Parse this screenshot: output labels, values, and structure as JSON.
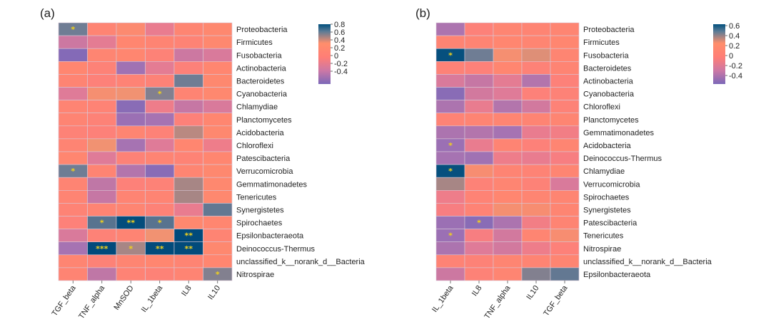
{
  "chart_data": [
    {
      "type": "heatmap",
      "panel_label": "(a)",
      "columns": [
        "TGF_beta",
        "TNF_alpha",
        "MnSOD",
        "IL_1beta",
        "IL8",
        "IL10"
      ],
      "rows": [
        "Proteobacteria",
        "Firmicutes",
        "Fusobacteria",
        "Actinobacteria",
        "Bacteroidetes",
        "Cyanobacteria",
        "Chlamydiae",
        "Planctomycetes",
        "Acidobacteria",
        "Chloroflexi",
        "Patescibacteria",
        "Verrucomicrobia",
        "Gemmatimonadetes",
        "Tenericutes",
        "Synergistetes",
        "Spirochaetes",
        "Epsilonbacteraeota",
        "Deinococcus-Thermus",
        "unclassified_k__norank_d__Bacteria",
        "Nitrospirae"
      ],
      "values": [
        [
          0.42,
          0.1,
          0.18,
          -0.08,
          0.12,
          0.16
        ],
        [
          -0.18,
          -0.1,
          0.14,
          0.1,
          0.08,
          0.16
        ],
        [
          -0.42,
          0.12,
          0.14,
          0.06,
          -0.18,
          -0.14
        ],
        [
          0.14,
          0.06,
          -0.32,
          -0.1,
          0.04,
          0.14
        ],
        [
          0.1,
          0.04,
          0.08,
          0.06,
          0.42,
          0.16
        ],
        [
          -0.12,
          0.24,
          0.28,
          0.4,
          0.1,
          0.16
        ],
        [
          0.1,
          0.08,
          -0.4,
          -0.06,
          -0.2,
          -0.14
        ],
        [
          0.1,
          0.06,
          -0.34,
          -0.3,
          0.04,
          0.14
        ],
        [
          0.06,
          0.04,
          0.12,
          0.06,
          0.34,
          0.16
        ],
        [
          0.1,
          0.28,
          -0.3,
          -0.12,
          0.14,
          -0.06
        ],
        [
          0.14,
          -0.12,
          0.06,
          0.1,
          0.08,
          0.14
        ],
        [
          0.42,
          0.1,
          -0.26,
          -0.4,
          0.12,
          0.16
        ],
        [
          0.1,
          -0.22,
          0.04,
          0.06,
          0.36,
          0.16
        ],
        [
          0.1,
          -0.2,
          0.1,
          0.1,
          0.36,
          0.16
        ],
        [
          0.08,
          0.1,
          0.12,
          0.06,
          -0.08,
          0.44
        ],
        [
          0.04,
          0.46,
          0.72,
          0.46,
          0.16,
          0.14
        ],
        [
          -0.14,
          0.06,
          0.1,
          0.28,
          0.8,
          0.1
        ],
        [
          -0.3,
          0.8,
          0.36,
          0.78,
          0.78,
          0.16
        ],
        [
          0.12,
          0.06,
          0.12,
          0.14,
          0.1,
          0.14
        ],
        [
          0.1,
          -0.22,
          0.08,
          0.06,
          0.1,
          0.4
        ]
      ],
      "significance": [
        [
          "*",
          "",
          "",
          "",
          "",
          ""
        ],
        [
          "",
          "",
          "",
          "",
          "",
          ""
        ],
        [
          "",
          "",
          "",
          "",
          "",
          ""
        ],
        [
          "",
          "",
          "",
          "",
          "",
          ""
        ],
        [
          "",
          "",
          "",
          "",
          "",
          ""
        ],
        [
          "",
          "",
          "",
          "*",
          "",
          ""
        ],
        [
          "",
          "",
          "",
          "",
          "",
          ""
        ],
        [
          "",
          "",
          "",
          "",
          "",
          ""
        ],
        [
          "",
          "",
          "",
          "",
          "",
          ""
        ],
        [
          "",
          "",
          "",
          "",
          "",
          ""
        ],
        [
          "",
          "",
          "",
          "",
          "",
          ""
        ],
        [
          "*",
          "",
          "",
          "",
          "",
          ""
        ],
        [
          "",
          "",
          "",
          "",
          "",
          ""
        ],
        [
          "",
          "",
          "",
          "",
          "",
          ""
        ],
        [
          "",
          "",
          "",
          "",
          "",
          ""
        ],
        [
          "",
          "*",
          "**",
          "*",
          "",
          ""
        ],
        [
          "",
          "",
          "",
          "",
          "**",
          ""
        ],
        [
          "",
          "***",
          "*",
          "**",
          "**",
          ""
        ],
        [
          "",
          "",
          "",
          "",
          "",
          ""
        ],
        [
          "",
          "",
          "",
          "",
          "",
          "*"
        ]
      ],
      "colorbar": {
        "ticks": [
          "0.8",
          "0.6",
          "0.4",
          "0.2",
          "0",
          "-0.2",
          "-0.4"
        ],
        "min": -0.5,
        "max": 0.85
      }
    },
    {
      "type": "heatmap",
      "panel_label": "(b)",
      "columns": [
        "IL_1beta",
        "IL8",
        "TNF_alpha",
        "IL10",
        "TGF_beta"
      ],
      "rows": [
        "Proteobacteria",
        "Firmicutes",
        "Fusobacteria",
        "Bacteroidetes",
        "Actinobacteria",
        "Cyanobacteria",
        "Chloroflexi",
        "Planctomycetes",
        "Gemmatimonadetes",
        "Acidobacteria",
        "Deinococcus-Thermus",
        "Chlamydiae",
        "Verrucomicrobia",
        "Spirochaetes",
        "Synergistetes",
        "Patescibacteria",
        "Tenericutes",
        "Nitrospirae",
        "unclassified_k__norank_d__Bacteria",
        "Epsilonbacteraeota"
      ],
      "values": [
        [
          -0.28,
          0.04,
          0.12,
          0.1,
          0.12
        ],
        [
          0.1,
          0.1,
          0.14,
          0.12,
          0.14
        ],
        [
          0.6,
          0.42,
          0.24,
          0.3,
          0.12
        ],
        [
          0.06,
          0.04,
          0.14,
          0.06,
          0.1
        ],
        [
          -0.14,
          -0.2,
          -0.1,
          -0.26,
          0.04
        ],
        [
          -0.4,
          -0.16,
          -0.12,
          0.04,
          0.06
        ],
        [
          -0.28,
          -0.08,
          -0.26,
          -0.16,
          0.06
        ],
        [
          0.08,
          0.1,
          0.12,
          0.1,
          0.12
        ],
        [
          -0.28,
          -0.26,
          -0.3,
          -0.08,
          -0.04
        ],
        [
          -0.34,
          -0.08,
          0.1,
          0.04,
          0.12
        ],
        [
          -0.3,
          -0.32,
          -0.06,
          -0.08,
          -0.02
        ],
        [
          0.6,
          0.22,
          0.1,
          0.08,
          0.12
        ],
        [
          0.36,
          0.06,
          0.12,
          0.06,
          -0.14
        ],
        [
          -0.06,
          0.08,
          0.14,
          0.12,
          0.12
        ],
        [
          -0.02,
          0.08,
          0.24,
          0.22,
          0.12
        ],
        [
          -0.34,
          -0.4,
          -0.28,
          -0.04,
          0.1
        ],
        [
          -0.34,
          -0.02,
          -0.16,
          0.12,
          0.22
        ],
        [
          -0.28,
          -0.12,
          -0.16,
          -0.06,
          0.04
        ],
        [
          0.08,
          0.06,
          0.12,
          0.1,
          0.12
        ],
        [
          -0.18,
          0.06,
          0.12,
          0.4,
          0.44
        ]
      ],
      "significance": [
        [
          "",
          "",
          "",
          "",
          ""
        ],
        [
          "",
          "",
          "",
          "",
          ""
        ],
        [
          "*",
          "",
          "",
          "",
          ""
        ],
        [
          "",
          "",
          "",
          "",
          ""
        ],
        [
          "",
          "",
          "",
          "",
          ""
        ],
        [
          "",
          "",
          "",
          "",
          ""
        ],
        [
          "",
          "",
          "",
          "",
          ""
        ],
        [
          "",
          "",
          "",
          "",
          ""
        ],
        [
          "",
          "",
          "",
          "",
          ""
        ],
        [
          "*",
          "",
          "",
          "",
          ""
        ],
        [
          "",
          "",
          "",
          "",
          ""
        ],
        [
          "*",
          "",
          "",
          "",
          ""
        ],
        [
          "",
          "",
          "",
          "",
          ""
        ],
        [
          "",
          "",
          "",
          "",
          ""
        ],
        [
          "",
          "",
          "",
          "",
          ""
        ],
        [
          "",
          "*",
          "",
          "",
          ""
        ],
        [
          "*",
          "",
          "",
          "",
          ""
        ],
        [
          "",
          "",
          "",
          "",
          ""
        ],
        [
          "",
          "",
          "",
          "",
          ""
        ],
        [
          "",
          "",
          "",
          "",
          ""
        ]
      ],
      "colorbar": {
        "ticks": [
          "0.6",
          "0.4",
          "0.2",
          "0",
          "-0.2",
          "-0.4"
        ],
        "min": -0.5,
        "max": 0.65
      }
    }
  ]
}
